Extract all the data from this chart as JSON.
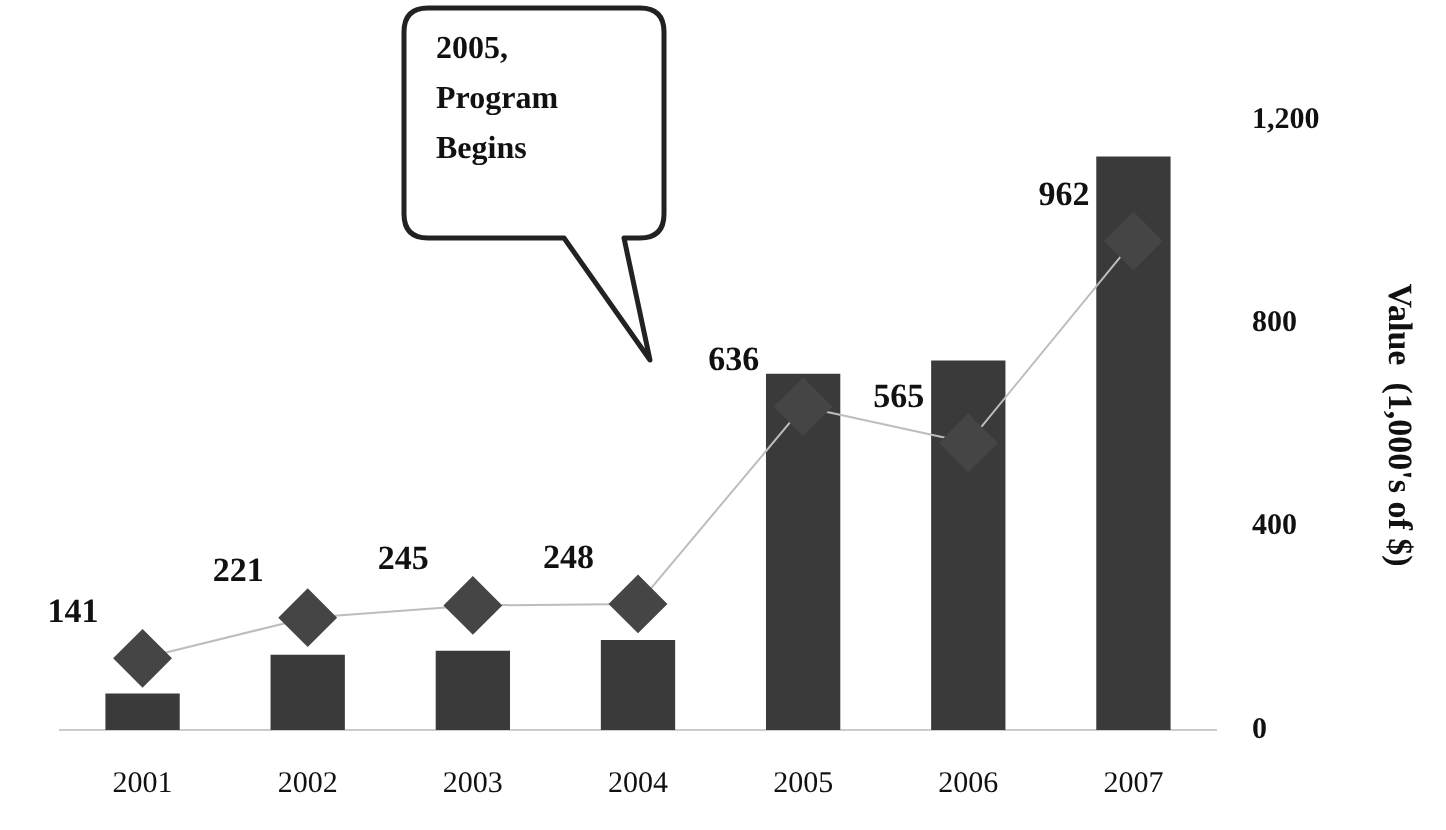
{
  "chart_data": {
    "type": "bar",
    "categories": [
      "2001",
      "2002",
      "2003",
      "2004",
      "2005",
      "2006",
      "2007"
    ],
    "series": [
      {
        "color": "#3a3a3a",
        "values": [
          72,
          148,
          156,
          177,
          701,
          727,
          1128
        ]
      },
      {
        "type": "line",
        "color": "#bdbdbd",
        "values": [
          141,
          221,
          245,
          248,
          636,
          565,
          962
        ],
        "value_labels": [
          "141",
          "221",
          "245",
          "248",
          "636",
          "565",
          "962"
        ]
      }
    ],
    "marker": "diamond",
    "ylim": [
      0,
      1200
    ],
    "yticks": [
      0,
      400,
      800,
      {
        "value": 1200,
        "label": "1,200"
      }
    ],
    "ylabel": "Value  (1,000's of $)",
    "annotations": [
      "2005, Program Begins"
    ],
    "grid": false,
    "legend": false
  }
}
